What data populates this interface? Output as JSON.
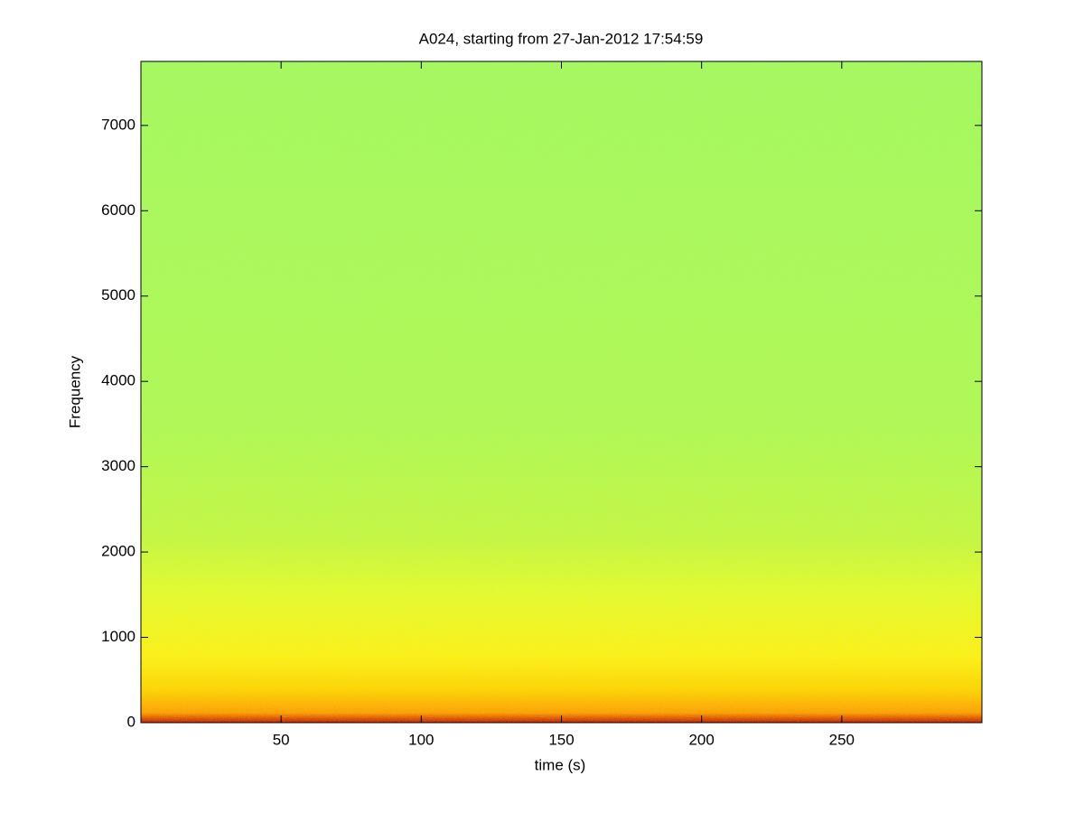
{
  "chart_data": {
    "type": "spectrogram",
    "title": "A024, starting from 27-Jan-2012 17:54:59",
    "xlabel": "time (s)",
    "ylabel": "Frequency",
    "xlim": [
      0,
      300
    ],
    "ylim": [
      0,
      7750
    ],
    "xticks": [
      50,
      100,
      150,
      200,
      250
    ],
    "yticks": [
      0,
      1000,
      2000,
      3000,
      4000,
      5000,
      6000,
      7000
    ]
  }
}
